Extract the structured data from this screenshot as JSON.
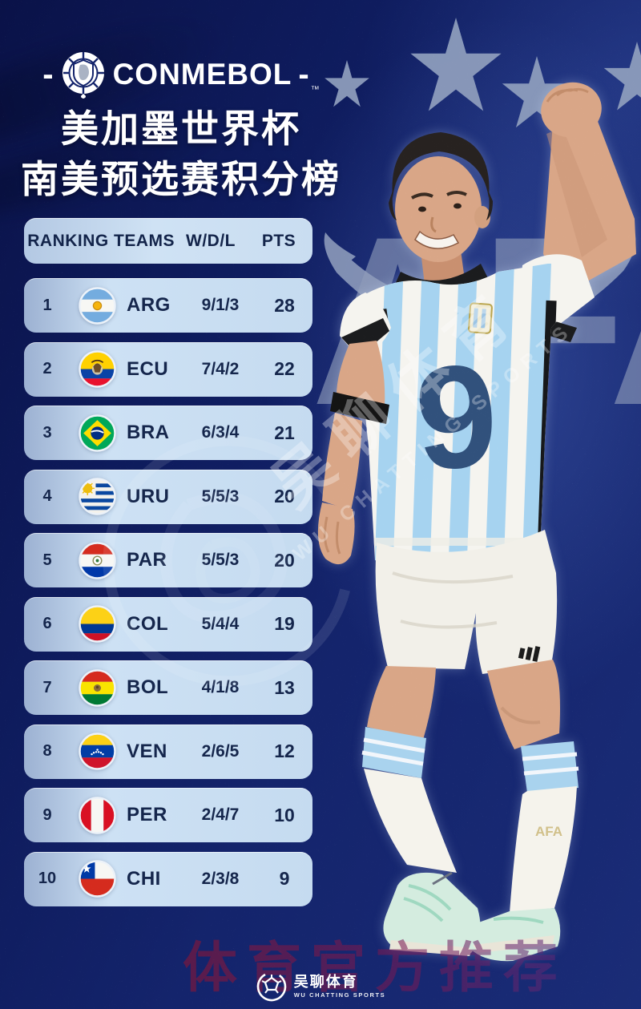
{
  "brand": {
    "prefix": "-",
    "name": "CONMEBOL",
    "suffix": "-",
    "tm": "™"
  },
  "title": {
    "line1": "美加墨世界杯",
    "line2": "南美预选赛积分榜"
  },
  "table": {
    "headers": [
      "RANKING",
      "TEAMS",
      "W/D/L",
      "PTS"
    ],
    "rows": [
      {
        "rank": "1",
        "flag": "arg",
        "team": "ARG",
        "wdl": "9/1/3",
        "pts": "28"
      },
      {
        "rank": "2",
        "flag": "ecu",
        "team": "ECU",
        "wdl": "7/4/2",
        "pts": "22"
      },
      {
        "rank": "3",
        "flag": "bra",
        "team": "BRA",
        "wdl": "6/3/4",
        "pts": "21"
      },
      {
        "rank": "4",
        "flag": "uru",
        "team": "URU",
        "wdl": "5/5/3",
        "pts": "20"
      },
      {
        "rank": "5",
        "flag": "par",
        "team": "PAR",
        "wdl": "5/5/3",
        "pts": "20"
      },
      {
        "rank": "6",
        "flag": "col",
        "team": "COL",
        "wdl": "5/4/4",
        "pts": "19"
      },
      {
        "rank": "7",
        "flag": "bol",
        "team": "BOL",
        "wdl": "4/1/8",
        "pts": "13"
      },
      {
        "rank": "8",
        "flag": "ven",
        "team": "VEN",
        "wdl": "2/6/5",
        "pts": "12"
      },
      {
        "rank": "9",
        "flag": "per",
        "team": "PER",
        "wdl": "2/4/7",
        "pts": "10"
      },
      {
        "rank": "10",
        "flag": "chi",
        "team": "CHI",
        "wdl": "2/3/8",
        "pts": "9"
      }
    ]
  },
  "chart_data": {
    "type": "table",
    "title": "美加墨世界杯 南美预选赛积分榜",
    "columns": [
      "RANKING",
      "TEAMS",
      "W/D/L",
      "PTS"
    ],
    "rows": [
      [
        "1",
        "ARG",
        "9/1/3",
        28
      ],
      [
        "2",
        "ECU",
        "7/4/2",
        22
      ],
      [
        "3",
        "BRA",
        "6/3/4",
        21
      ],
      [
        "4",
        "URU",
        "5/5/3",
        20
      ],
      [
        "5",
        "PAR",
        "5/5/3",
        20
      ],
      [
        "6",
        "COL",
        "5/4/4",
        19
      ],
      [
        "7",
        "BOL",
        "4/1/8",
        13
      ],
      [
        "8",
        "VEN",
        "2/6/5",
        12
      ],
      [
        "9",
        "PER",
        "2/4/7",
        10
      ],
      [
        "10",
        "CHI",
        "2/3/8",
        9
      ]
    ]
  },
  "player": {
    "jersey_number": "9",
    "sock_text": "AFA"
  },
  "watermarks": {
    "afa": "AFA",
    "diagonal_cn": "吴聊体育",
    "diagonal_en": "WU CHATTING SPORTS",
    "promo_text": "体育官方推荐"
  },
  "footer": {
    "logo_cn": "吴聊体育",
    "logo_en": "WU CHATTING SPORTS"
  },
  "colors": {
    "background_navy": "#14246c",
    "row_light_blue": "#c9ddf1",
    "text_navy": "#15264c",
    "star_gray_blue": "#90a0be",
    "promo_red": "#8d1634"
  }
}
